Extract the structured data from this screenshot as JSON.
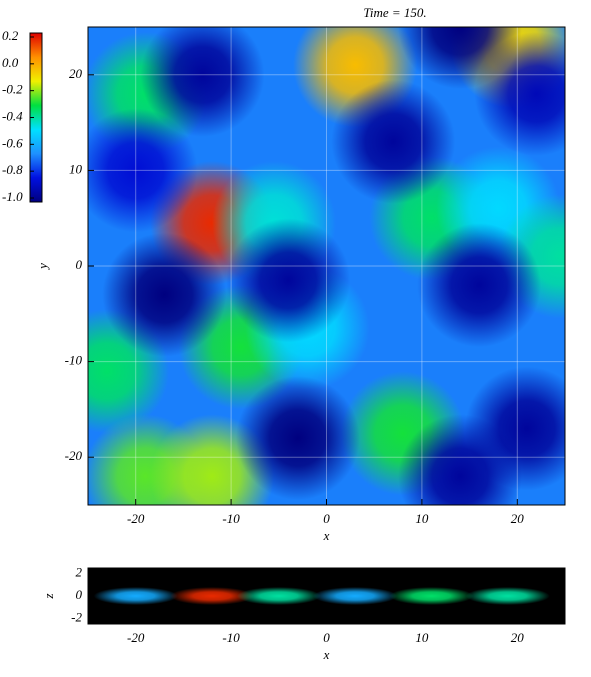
{
  "chart_data": [
    {
      "type": "contour",
      "title": "Time = 150.",
      "xlabel": "x",
      "ylabel": "y",
      "xlim": [
        -25,
        25
      ],
      "ylim": [
        -25,
        25
      ],
      "xticks": [
        -20,
        -10,
        0,
        10,
        20
      ],
      "yticks": [
        -20,
        -10,
        0,
        10,
        20
      ],
      "grid": true,
      "background_value": -0.68,
      "clim": [
        -1.0,
        0.2
      ],
      "colormap": [
        "#000080",
        "#0010e0",
        "#1e90ff",
        "#00e0ff",
        "#00e040",
        "#f0f000",
        "#ff9000",
        "#e00000"
      ],
      "colorbar_ticks": [
        0.2,
        {
          "value": 0,
          "label": "0.0"
        },
        -0.2,
        -0.4,
        -0.6,
        -0.8,
        {
          "value": -1,
          "label": "-1.0"
        }
      ],
      "peaks": {
        "x": [
          -19,
          3,
          19.5,
          -12,
          -5.5,
          11,
          18,
          24.5,
          -9,
          -2,
          -23,
          8,
          -19,
          -12,
          -13,
          7,
          -17,
          -4,
          -3,
          16,
          21,
          14,
          -20,
          22,
          14
        ],
        "y": [
          18,
          21,
          23,
          4.5,
          4.5,
          5,
          6,
          1,
          -8.5,
          -6.5,
          -11,
          -17.5,
          -22,
          -22,
          20,
          13,
          -3,
          -1.5,
          -18,
          -2,
          -17,
          -22,
          10,
          18,
          25
        ],
        "values": [
          -0.35,
          -0.05,
          -0.1,
          0.15,
          -0.45,
          -0.35,
          -0.5,
          -0.4,
          -0.3,
          -0.5,
          -0.35,
          -0.3,
          -0.25,
          -0.2,
          -0.95,
          -0.95,
          -1.0,
          -0.95,
          -1.0,
          -0.95,
          -0.95,
          -0.95,
          -0.85,
          -0.9,
          -1.0
        ]
      }
    },
    {
      "type": "contour",
      "xlabel": "x",
      "ylabel": "z",
      "xlim": [
        -25,
        25
      ],
      "ylim": [
        -2.5,
        2.5
      ],
      "xticks": [
        -20,
        -10,
        0,
        10,
        20
      ],
      "yticks": [
        -2,
        0,
        2
      ],
      "background_value": -1.3,
      "peaks": {
        "x": [
          -20,
          -12,
          -5,
          3,
          11,
          19
        ],
        "y": [
          0,
          0,
          0,
          0,
          0,
          0
        ],
        "values": [
          -0.6,
          0.15,
          -0.4,
          -0.6,
          -0.35,
          -0.4
        ]
      }
    }
  ]
}
